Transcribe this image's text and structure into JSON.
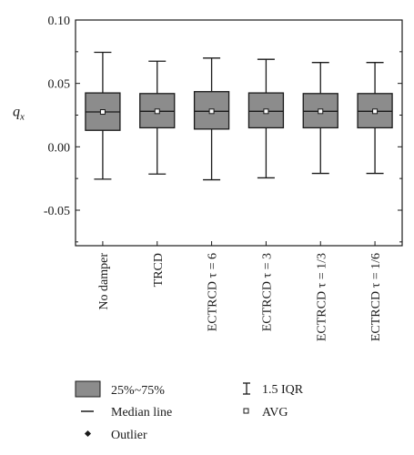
{
  "chart_data": {
    "type": "box",
    "ylabel_main": "q",
    "ylabel_sub": "x",
    "ylim": [
      -0.078,
      0.1
    ],
    "yticks": [
      -0.05,
      0.0,
      0.05,
      0.1
    ],
    "ytick_labels": [
      "-0.05",
      "0.00",
      "0.05",
      "0.10"
    ],
    "categories": [
      "No damper",
      "TRCD",
      "ECTRCD τ = 6",
      "ECTRCD τ = 3",
      "ECTRCD τ = 1/3",
      "ECTRCD τ = 1/6"
    ],
    "boxes": [
      {
        "whisker_low": -0.0255,
        "q1": 0.013,
        "median": 0.0275,
        "q3": 0.0425,
        "whisker_high": 0.0745,
        "avg": 0.0275
      },
      {
        "whisker_low": -0.0215,
        "q1": 0.015,
        "median": 0.028,
        "q3": 0.042,
        "whisker_high": 0.0675,
        "avg": 0.028
      },
      {
        "whisker_low": -0.026,
        "q1": 0.014,
        "median": 0.028,
        "q3": 0.0435,
        "whisker_high": 0.07,
        "avg": 0.028
      },
      {
        "whisker_low": -0.0245,
        "q1": 0.015,
        "median": 0.028,
        "q3": 0.0425,
        "whisker_high": 0.069,
        "avg": 0.028
      },
      {
        "whisker_low": -0.021,
        "q1": 0.015,
        "median": 0.028,
        "q3": 0.042,
        "whisker_high": 0.0665,
        "avg": 0.028
      },
      {
        "whisker_low": -0.021,
        "q1": 0.015,
        "median": 0.028,
        "q3": 0.042,
        "whisker_high": 0.0665,
        "avg": 0.028
      }
    ],
    "box_color": "#8c8c8c",
    "legend": {
      "box": "25%~75%",
      "median": "Median line",
      "outlier": "Outlier",
      "iqr": "1.5 IQR",
      "avg": "AVG"
    }
  }
}
